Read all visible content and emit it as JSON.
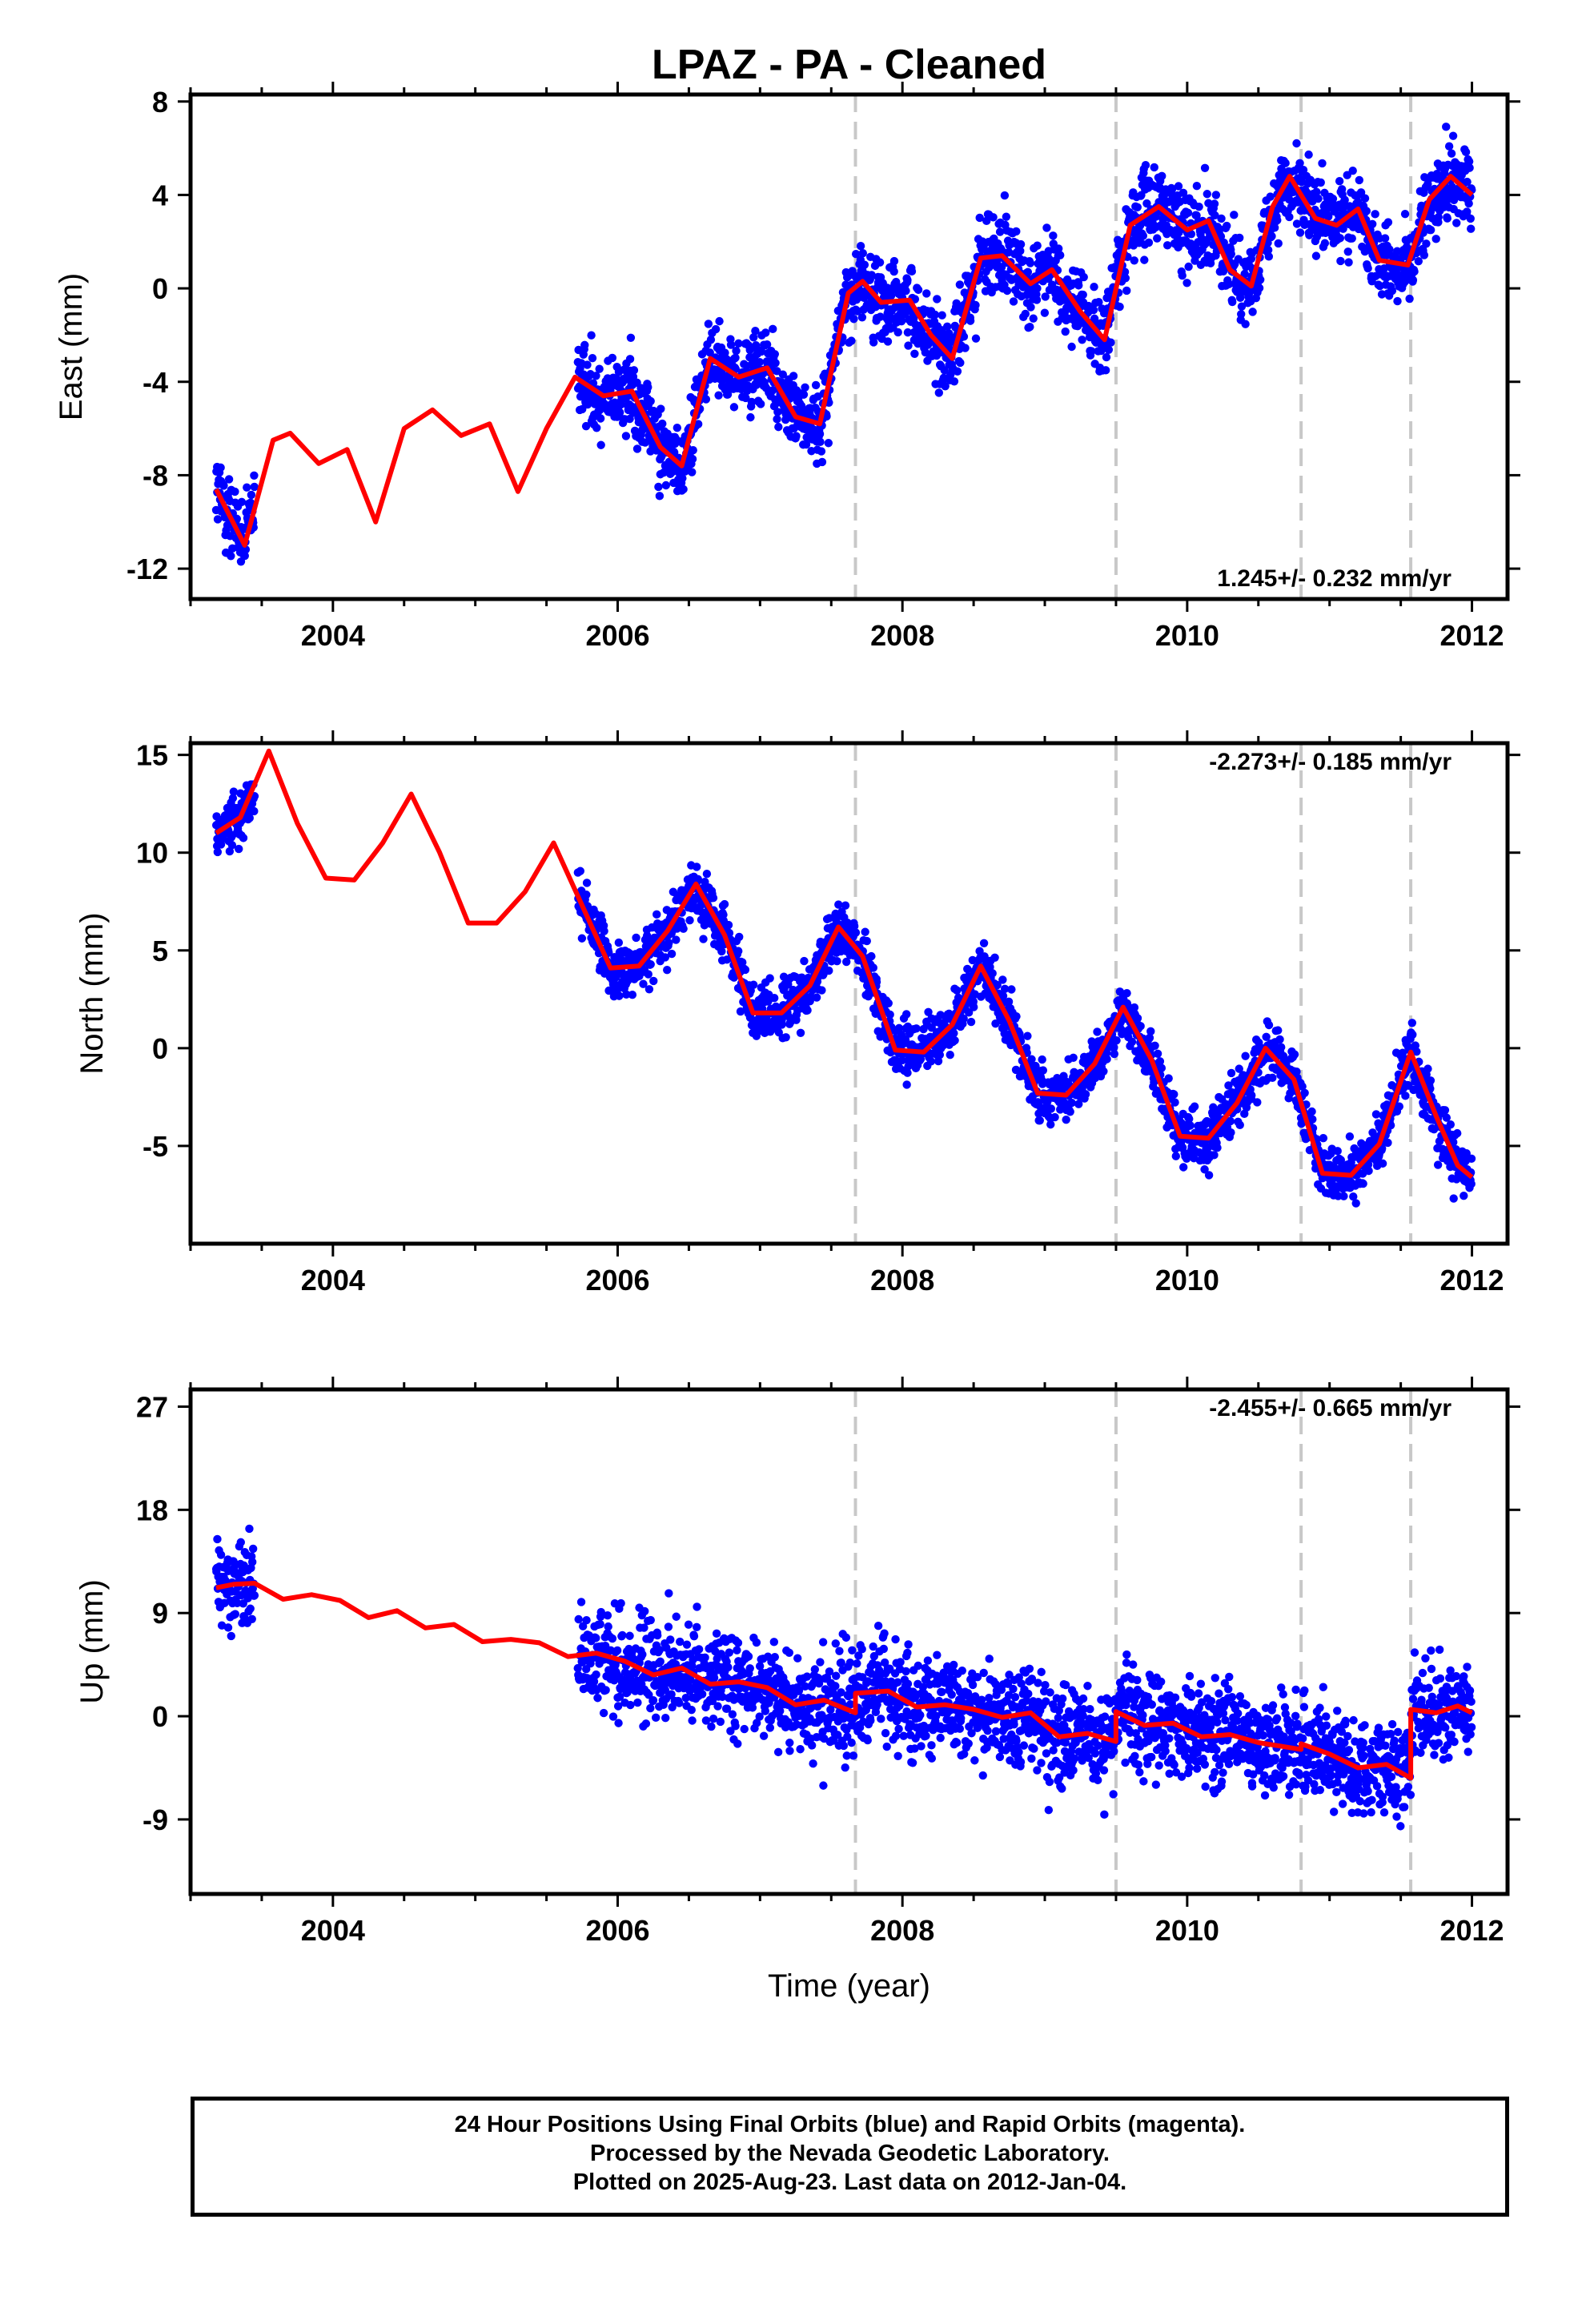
{
  "chart_data": [
    {
      "type": "scatter",
      "title": "LPAZ  - PA - Cleaned",
      "ylabel": "East (mm)",
      "xlabel": "",
      "xlim": [
        2003.0,
        2012.25
      ],
      "ylim": [
        -13.3,
        8.3
      ],
      "xticks": [
        "2004",
        "2006",
        "2008",
        "2010",
        "2012"
      ],
      "yticks": [
        "-12",
        "-8",
        "-4",
        "0",
        "4",
        "8"
      ],
      "rate_label": "1.245+/- 0.232 mm/yr",
      "rate_position": "bottom-right",
      "offset_lines_x": [
        2007.67,
        2009.5,
        2010.8,
        2011.57
      ],
      "fit_line": {
        "x": [
          2003.18,
          2003.38,
          2003.58,
          2003.7,
          2003.9,
          2004.1,
          2004.3,
          2004.5,
          2004.7,
          2004.9,
          2005.1,
          2005.3,
          2005.5,
          2005.7,
          2005.9,
          2006.1,
          2006.3,
          2006.45,
          2006.65,
          2006.85,
          2007.05,
          2007.25,
          2007.42,
          2007.62,
          2007.72,
          2007.85,
          2008.05,
          2008.2,
          2008.35,
          2008.55,
          2008.7,
          2008.9,
          2009.05,
          2009.25,
          2009.42,
          2009.6,
          2009.8,
          2010.0,
          2010.15,
          2010.3,
          2010.45,
          2010.6,
          2010.72,
          2010.9,
          2011.05,
          2011.2,
          2011.35,
          2011.55,
          2011.7,
          2011.85,
          2012.0
        ],
        "y": [
          -8.6,
          -11.0,
          -6.5,
          -6.2,
          -7.5,
          -6.9,
          -10.0,
          -6.0,
          -5.2,
          -6.3,
          -5.8,
          -8.7,
          -6.0,
          -3.8,
          -4.6,
          -4.4,
          -6.8,
          -7.6,
          -3.0,
          -3.8,
          -3.4,
          -5.5,
          -5.8,
          -0.2,
          0.3,
          -0.6,
          -0.5,
          -2.0,
          -3.0,
          1.3,
          1.4,
          0.2,
          0.8,
          -1.0,
          -2.2,
          2.7,
          3.5,
          2.5,
          2.9,
          0.8,
          0.1,
          3.5,
          4.8,
          3.0,
          2.7,
          3.4,
          1.2,
          1.0,
          3.8,
          4.8,
          4.0
        ]
      }
    },
    {
      "type": "scatter",
      "title": "",
      "ylabel": "North (mm)",
      "xlabel": "",
      "xlim": [
        2003.0,
        2012.25
      ],
      "ylim": [
        -10.0,
        15.6
      ],
      "xticks": [
        "2004",
        "2006",
        "2008",
        "2010",
        "2012"
      ],
      "yticks": [
        "-5",
        "0",
        "5",
        "10",
        "15"
      ],
      "rate_label": "-2.273+/- 0.185 mm/yr",
      "rate_position": "top-right",
      "offset_lines_x": [
        2007.67,
        2009.5,
        2010.8,
        2011.57
      ],
      "fit_line": {
        "x": [
          2003.18,
          2003.35,
          2003.55,
          2003.75,
          2003.95,
          2004.15,
          2004.35,
          2004.55,
          2004.75,
          2004.95,
          2005.15,
          2005.35,
          2005.55,
          2005.75,
          2005.95,
          2006.15,
          2006.35,
          2006.55,
          2006.75,
          2006.95,
          2007.15,
          2007.35,
          2007.55,
          2007.72,
          2007.95,
          2008.15,
          2008.35,
          2008.55,
          2008.75,
          2008.95,
          2009.15,
          2009.35,
          2009.55,
          2009.75,
          2009.95,
          2010.15,
          2010.35,
          2010.55,
          2010.75,
          2010.95,
          2011.15,
          2011.35,
          2011.57,
          2011.75,
          2011.9,
          2012.0
        ],
        "y": [
          11.0,
          11.8,
          15.2,
          11.5,
          8.7,
          8.6,
          10.5,
          13.0,
          10.0,
          6.4,
          6.4,
          8.0,
          10.5,
          7.3,
          4.1,
          4.2,
          6.0,
          8.4,
          5.8,
          1.8,
          1.8,
          3.2,
          6.2,
          4.7,
          -0.1,
          -0.2,
          1.2,
          4.2,
          1.4,
          -2.3,
          -2.4,
          -0.8,
          2.1,
          -0.6,
          -4.5,
          -4.6,
          -2.8,
          0.0,
          -1.6,
          -6.4,
          -6.5,
          -4.9,
          -0.2,
          -3.5,
          -6.0,
          -6.6
        ]
      }
    },
    {
      "type": "scatter",
      "title": "",
      "ylabel": "Up (mm)",
      "xlabel": "Time (year)",
      "xlim": [
        2003.0,
        2012.25
      ],
      "ylim": [
        -15.5,
        28.5
      ],
      "xticks": [
        "2004",
        "2006",
        "2008",
        "2010",
        "2012"
      ],
      "yticks": [
        "-9",
        "0",
        "9",
        "18",
        "27"
      ],
      "rate_label": "-2.455+/- 0.665 mm/yr",
      "rate_position": "top-right",
      "offset_lines_x": [
        2007.67,
        2009.5,
        2010.8,
        2011.57
      ],
      "fit_line": {
        "x": [
          2003.18,
          2003.3,
          2003.45,
          2003.65,
          2003.85,
          2004.05,
          2004.25,
          2004.45,
          2004.65,
          2004.85,
          2005.05,
          2005.25,
          2005.45,
          2005.65,
          2005.85,
          2006.05,
          2006.25,
          2006.45,
          2006.65,
          2006.85,
          2007.05,
          2007.25,
          2007.45,
          2007.67,
          2007.67,
          2007.9,
          2008.1,
          2008.3,
          2008.5,
          2008.7,
          2008.9,
          2009.1,
          2009.3,
          2009.5,
          2009.5,
          2009.7,
          2009.9,
          2010.1,
          2010.3,
          2010.5,
          2010.7,
          2010.8,
          2010.8,
          2011.0,
          2011.2,
          2011.4,
          2011.57,
          2011.57,
          2011.75,
          2011.9,
          2012.0
        ],
        "y": [
          11.2,
          11.5,
          11.6,
          10.2,
          10.6,
          10.1,
          8.6,
          9.2,
          7.7,
          8.0,
          6.5,
          6.7,
          6.4,
          5.2,
          5.5,
          4.8,
          3.6,
          4.2,
          2.8,
          3.0,
          2.5,
          1.0,
          1.4,
          0.3,
          2.0,
          2.2,
          0.8,
          1.0,
          0.6,
          -0.1,
          0.3,
          -1.8,
          -1.5,
          -2.2,
          0.4,
          -0.8,
          -0.6,
          -1.8,
          -1.6,
          -2.3,
          -2.7,
          -2.9,
          -2.4,
          -3.3,
          -4.5,
          -4.2,
          -5.4,
          0.6,
          0.3,
          0.9,
          0.3
        ]
      }
    }
  ],
  "series_styles": {
    "points_color": "#0000ff",
    "fit_color": "#ff0000",
    "offset_line_color": "#c8c8c8"
  },
  "footer": {
    "line1": "24 Hour Positions Using Final Orbits (blue) and Rapid Orbits (magenta).",
    "line2": "Processed by the Nevada Geodetic Laboratory.",
    "line3": "Plotted on 2025-Aug-23. Last data on 2012-Jan-04."
  }
}
